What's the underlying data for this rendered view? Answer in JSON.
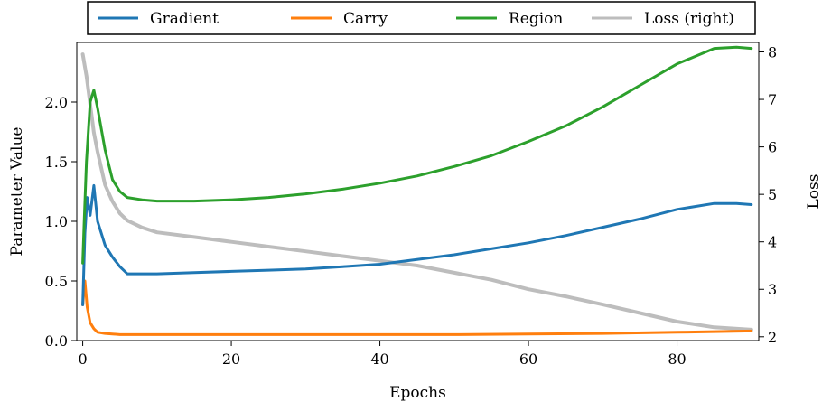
{
  "chart_data": {
    "type": "line",
    "xlabel": "Epochs",
    "ylabel": "Parameter Value",
    "y2label": "Loss",
    "xlim": [
      -0.8,
      91
    ],
    "ylim": [
      0,
      2.5
    ],
    "y2lim": [
      1.92,
      8.2
    ],
    "xticks": [
      0,
      20,
      40,
      60,
      80
    ],
    "yticks": [
      0.0,
      0.5,
      1.0,
      1.5,
      2.0
    ],
    "y2ticks": [
      2,
      3,
      4,
      5,
      6,
      7,
      8
    ],
    "grid": false,
    "legend_position": "top",
    "series": [
      {
        "name": "Gradient",
        "axis": "left",
        "color": "#1f77b4",
        "x": [
          0,
          0.3,
          0.6,
          1,
          1.5,
          2,
          3,
          4,
          5,
          6,
          8,
          10,
          15,
          20,
          25,
          30,
          35,
          40,
          45,
          50,
          55,
          60,
          65,
          70,
          75,
          80,
          85,
          88,
          90
        ],
        "values": [
          0.3,
          0.9,
          1.2,
          1.05,
          1.3,
          1.0,
          0.8,
          0.7,
          0.62,
          0.56,
          0.56,
          0.56,
          0.57,
          0.58,
          0.59,
          0.6,
          0.62,
          0.64,
          0.68,
          0.72,
          0.77,
          0.82,
          0.88,
          0.95,
          1.02,
          1.1,
          1.15,
          1.15,
          1.14
        ]
      },
      {
        "name": "Carry",
        "axis": "left",
        "color": "#ff7f0e",
        "x": [
          0,
          0.3,
          0.6,
          1,
          1.5,
          2,
          3,
          4,
          5,
          6,
          8,
          10,
          20,
          30,
          40,
          50,
          60,
          70,
          80,
          85,
          90
        ],
        "values": [
          0.3,
          0.5,
          0.28,
          0.15,
          0.1,
          0.07,
          0.06,
          0.055,
          0.05,
          0.05,
          0.05,
          0.05,
          0.05,
          0.05,
          0.05,
          0.05,
          0.055,
          0.06,
          0.07,
          0.075,
          0.08
        ]
      },
      {
        "name": "Region",
        "axis": "left",
        "color": "#2ca02c",
        "x": [
          0,
          0.2,
          0.5,
          1,
          1.5,
          2,
          3,
          4,
          5,
          6,
          8,
          10,
          15,
          20,
          25,
          30,
          35,
          40,
          45,
          50,
          55,
          60,
          65,
          70,
          75,
          80,
          85,
          88,
          90
        ],
        "values": [
          0.65,
          1.0,
          1.5,
          2.0,
          2.1,
          1.95,
          1.6,
          1.35,
          1.25,
          1.2,
          1.18,
          1.17,
          1.17,
          1.18,
          1.2,
          1.23,
          1.27,
          1.32,
          1.38,
          1.46,
          1.55,
          1.67,
          1.8,
          1.96,
          2.14,
          2.32,
          2.45,
          2.46,
          2.45
        ]
      },
      {
        "name": "Loss (right)",
        "axis": "right",
        "color": "#bdbdbd",
        "x": [
          0,
          0.5,
          1,
          1.5,
          2,
          3,
          4,
          5,
          6,
          8,
          10,
          15,
          20,
          25,
          30,
          35,
          40,
          45,
          50,
          55,
          60,
          65,
          70,
          75,
          80,
          85,
          90
        ],
        "values": [
          7.95,
          7.5,
          6.9,
          6.3,
          5.9,
          5.2,
          4.85,
          4.6,
          4.45,
          4.3,
          4.2,
          4.1,
          4.0,
          3.9,
          3.8,
          3.7,
          3.6,
          3.5,
          3.35,
          3.2,
          3.0,
          2.85,
          2.68,
          2.5,
          2.32,
          2.2,
          2.15
        ]
      }
    ]
  }
}
